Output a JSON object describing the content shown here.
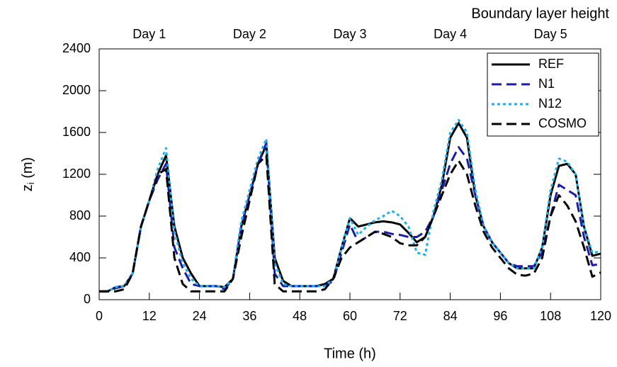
{
  "chart_data": {
    "type": "line",
    "title": "Boundary layer height",
    "x_label": "Time (h)",
    "y_label": [
      "z",
      "i",
      " (m)"
    ],
    "x": [
      0,
      2,
      4,
      6,
      8,
      10,
      12,
      14,
      16,
      18,
      20,
      22,
      24,
      26,
      28,
      30,
      32,
      34,
      36,
      38,
      40,
      42,
      44,
      46,
      48,
      50,
      52,
      54,
      56,
      58,
      60,
      62,
      64,
      66,
      68,
      70,
      72,
      74,
      76,
      78,
      80,
      82,
      84,
      86,
      88,
      90,
      92,
      94,
      96,
      98,
      100,
      102,
      104,
      106,
      108,
      110,
      112,
      114,
      116,
      118,
      120
    ],
    "series": [
      {
        "name": "REF",
        "color": "#000000",
        "style": "solid",
        "values": [
          80,
          80,
          120,
          130,
          250,
          700,
          950,
          1200,
          1380,
          700,
          400,
          250,
          130,
          130,
          130,
          120,
          200,
          700,
          1000,
          1300,
          1480,
          400,
          180,
          130,
          130,
          130,
          130,
          150,
          200,
          500,
          780,
          700,
          720,
          740,
          750,
          740,
          720,
          640,
          550,
          600,
          800,
          1100,
          1550,
          1690,
          1550,
          1000,
          700,
          550,
          450,
          350,
          300,
          300,
          300,
          500,
          1000,
          1280,
          1300,
          1200,
          700,
          420,
          440
        ]
      },
      {
        "name": "N1",
        "color": "#1c1ca8",
        "style": "dashed",
        "values": [
          80,
          80,
          110,
          130,
          250,
          700,
          950,
          1150,
          1300,
          500,
          300,
          150,
          130,
          130,
          130,
          100,
          200,
          700,
          1000,
          1300,
          1500,
          250,
          130,
          130,
          130,
          130,
          130,
          130,
          180,
          450,
          720,
          550,
          600,
          650,
          650,
          630,
          620,
          600,
          600,
          650,
          800,
          1050,
          1300,
          1460,
          1350,
          1000,
          700,
          550,
          450,
          350,
          320,
          320,
          320,
          450,
          800,
          1100,
          1050,
          1000,
          600,
          330,
          340
        ]
      },
      {
        "name": "N12",
        "color": "#1ab2ee",
        "style": "dotted",
        "values": [
          80,
          80,
          120,
          130,
          250,
          700,
          950,
          1250,
          1450,
          650,
          350,
          200,
          130,
          130,
          130,
          120,
          200,
          750,
          1050,
          1350,
          1540,
          350,
          150,
          130,
          130,
          130,
          130,
          130,
          200,
          500,
          780,
          620,
          700,
          760,
          800,
          850,
          800,
          700,
          450,
          430,
          850,
          1150,
          1600,
          1720,
          1600,
          1050,
          700,
          550,
          450,
          350,
          300,
          300,
          300,
          500,
          1050,
          1350,
          1320,
          1200,
          700,
          450,
          460
        ]
      },
      {
        "name": "COSMO",
        "color": "#000000",
        "style": "dashed",
        "values": [
          80,
          80,
          80,
          100,
          250,
          700,
          950,
          1200,
          1250,
          400,
          150,
          80,
          80,
          80,
          80,
          80,
          200,
          600,
          950,
          1300,
          1380,
          150,
          80,
          80,
          80,
          80,
          80,
          100,
          200,
          400,
          500,
          550,
          600,
          650,
          630,
          600,
          540,
          520,
          520,
          600,
          800,
          1000,
          1200,
          1330,
          1200,
          900,
          650,
          500,
          400,
          300,
          240,
          230,
          250,
          400,
          800,
          1000,
          900,
          750,
          500,
          220,
          260
        ]
      }
    ],
    "xlim": [
      0,
      120
    ],
    "xticks": [
      0,
      12,
      24,
      36,
      48,
      60,
      72,
      84,
      96,
      108,
      120
    ],
    "ylim": [
      0,
      2400
    ],
    "yticks": [
      0,
      400,
      800,
      1200,
      1600,
      2000,
      2400
    ],
    "x2ticks": [
      {
        "value": 12,
        "label": "Day 1"
      },
      {
        "value": 36,
        "label": "Day 2"
      },
      {
        "value": 60,
        "label": "Day 3"
      },
      {
        "value": 84,
        "label": "Day 4"
      },
      {
        "value": 108,
        "label": "Day 5"
      }
    ],
    "legend": "top-right",
    "grid": false
  }
}
